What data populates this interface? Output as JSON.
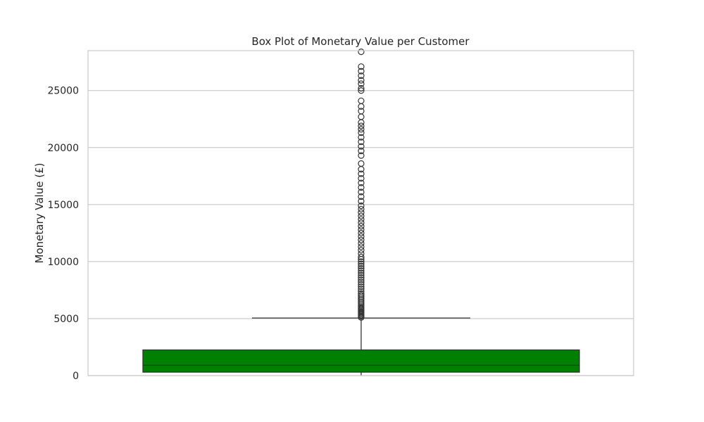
{
  "chart_data": {
    "type": "box",
    "title": "Box Plot of Monetary Value per Customer",
    "xlabel": "",
    "ylabel": "Monetary Value (£)",
    "ylim": [
      0,
      28500
    ],
    "yticks": [
      0,
      5000,
      10000,
      15000,
      20000,
      25000
    ],
    "ytick_labels": [
      "0",
      "5000",
      "10000",
      "15000",
      "20000",
      "25000"
    ],
    "grid": true,
    "box_color": "#008000",
    "series": [
      {
        "q1": 300,
        "median": 900,
        "q3": 2250,
        "whisker_low": 0,
        "whisker_high": 5050,
        "outliers": [
          5100,
          5200,
          5300,
          5400,
          5500,
          5600,
          5700,
          5800,
          5900,
          6000,
          6150,
          6300,
          6450,
          6600,
          6750,
          6900,
          7050,
          7200,
          7400,
          7600,
          7800,
          8000,
          8200,
          8400,
          8600,
          8800,
          9000,
          9200,
          9400,
          9600,
          9800,
          10000,
          10200,
          10400,
          10700,
          11000,
          11300,
          11600,
          11900,
          12200,
          12500,
          12800,
          13100,
          13400,
          13700,
          14000,
          14300,
          14600,
          14900,
          15300,
          15700,
          16100,
          16500,
          16900,
          17300,
          17700,
          18100,
          18600,
          19300,
          19700,
          20100,
          20500,
          20900,
          21300,
          21600,
          21900,
          22200,
          22700,
          23200,
          23600,
          24100,
          25000,
          25200,
          25600,
          25900,
          26300,
          26700,
          27100,
          28400
        ]
      }
    ]
  }
}
